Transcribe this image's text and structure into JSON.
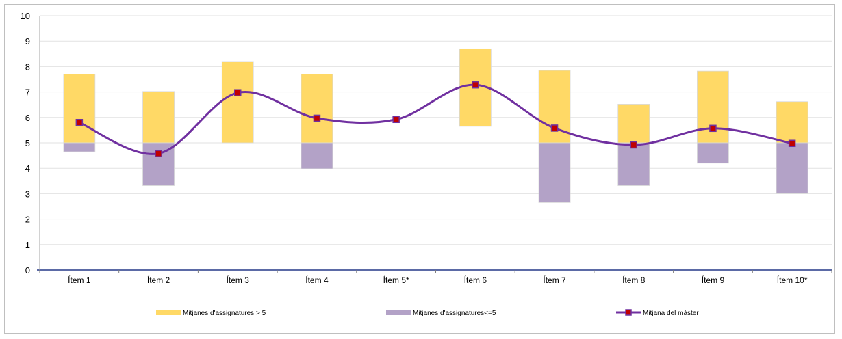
{
  "chart_data": {
    "type": "bar",
    "categories": [
      "Ítem 1",
      "Ítem 2",
      "Ítem 3",
      "Ítem 4",
      "Ítem 5*",
      "Ítem 6",
      "Ítem 7",
      "Ítem 8",
      "Ítem 9",
      "Ítem 10*"
    ],
    "ylim": [
      0,
      10
    ],
    "yticks": [
      "0",
      "1",
      "2",
      "3",
      "4",
      "5",
      "6",
      "7",
      "8",
      "9",
      "10"
    ],
    "baseline": 5,
    "grid": true,
    "legend_position": "bottom",
    "series": [
      {
        "name": "Mitjanes d'assignatures > 5",
        "kind": "range-bar",
        "color": "#FFD966",
        "low": [
          5,
          5,
          5,
          5,
          null,
          5.65,
          5,
          5,
          5,
          5
        ],
        "high": [
          7.7,
          7.02,
          8.2,
          7.7,
          null,
          8.7,
          7.85,
          6.52,
          7.82,
          6.62
        ]
      },
      {
        "name": "Mitjanes d'assignatures<=5",
        "kind": "range-bar",
        "color": "#B3A2C7",
        "low": [
          4.65,
          3.32,
          null,
          3.98,
          null,
          null,
          2.65,
          3.32,
          4.2,
          3.0
        ],
        "high": [
          5,
          5,
          null,
          5,
          null,
          null,
          5,
          5,
          5,
          5
        ]
      },
      {
        "name": "Mitjana del màster",
        "kind": "line",
        "color": "#7030A0",
        "marker_color": "#C00000",
        "values": [
          5.8,
          4.58,
          6.97,
          5.97,
          5.92,
          7.28,
          5.58,
          4.92,
          5.57,
          4.98
        ]
      }
    ]
  }
}
